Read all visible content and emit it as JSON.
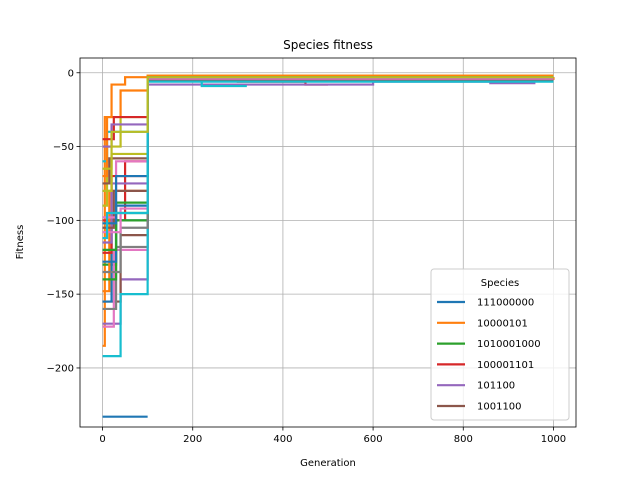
{
  "chart_data": {
    "type": "line",
    "title": "Species fitness",
    "xlabel": "Generation",
    "ylabel": "Fitness",
    "xlim": [
      -50,
      1050
    ],
    "ylim": [
      -240,
      10
    ],
    "xticks": [
      0,
      200,
      400,
      600,
      800,
      1000
    ],
    "yticks": [
      0,
      -50,
      -100,
      -150,
      -200
    ],
    "ytick_labels": [
      "0",
      "−50",
      "−100",
      "−150",
      "−200"
    ],
    "grid": true,
    "legend": {
      "title": "Species",
      "placement": "lower right"
    },
    "palette": [
      "#1f77b4",
      "#ff7f0e",
      "#2ca02c",
      "#d62728",
      "#9467bd",
      "#8c564b",
      "#e377c2",
      "#7f7f7f",
      "#bcbd22",
      "#17becf"
    ],
    "series": [
      {
        "name": "111000000",
        "color": "#1f77b4",
        "x": [
          0,
          100
        ],
        "y": [
          -233,
          -233
        ]
      },
      {
        "name": "10000101",
        "color": "#ff7f0e",
        "x": [
          0,
          5,
          20,
          50,
          100,
          1000
        ],
        "y": [
          -185,
          -30,
          -8,
          -3,
          -2,
          -2
        ]
      },
      {
        "name": "1010001000",
        "color": "#2ca02c",
        "x": [
          0,
          30,
          100,
          100,
          400,
          1000
        ],
        "y": [
          -130,
          -95,
          -70,
          -5,
          -4,
          -3
        ]
      },
      {
        "name": "100001101",
        "color": "#d62728",
        "x": [
          0,
          50,
          100,
          100,
          300,
          300,
          450,
          450,
          500
        ],
        "y": [
          -100,
          -60,
          -40,
          -5,
          -5,
          -6,
          -6,
          -8,
          -8
        ]
      },
      {
        "name": "101100",
        "color": "#9467bd",
        "x": [
          0,
          40,
          100,
          100,
          600,
          600,
          860,
          860,
          960
        ],
        "y": [
          -170,
          -140,
          -100,
          -8,
          -8,
          -6,
          -6,
          -7,
          -7
        ]
      },
      {
        "name": "1001100",
        "color": "#8c564b",
        "x": [
          0,
          40,
          100,
          100,
          650,
          650,
          700
        ],
        "y": [
          -155,
          -110,
          -85,
          -4,
          -4,
          -5,
          -5
        ]
      },
      {
        "name": "",
        "color": "#e377c2",
        "x": [
          0,
          25,
          100,
          100,
          1000
        ],
        "y": [
          -172,
          -120,
          -80,
          -3,
          -3
        ]
      },
      {
        "name": "",
        "color": "#7f7f7f",
        "x": [
          0,
          30,
          100,
          100,
          1000
        ],
        "y": [
          -160,
          -118,
          -90,
          -4,
          -4
        ]
      },
      {
        "name": "",
        "color": "#bcbd22",
        "x": [
          0,
          10,
          40,
          100,
          100,
          1000
        ],
        "y": [
          -90,
          -50,
          -30,
          -20,
          -2,
          -2
        ]
      },
      {
        "name": "",
        "color": "#17becf",
        "x": [
          0,
          40,
          100,
          100,
          220,
          220,
          320
        ],
        "y": [
          -192,
          -150,
          -112,
          -5,
          -5,
          -9,
          -9
        ]
      },
      {
        "name": "",
        "color": "#1f77b4",
        "x": [
          0,
          20,
          100,
          100,
          1000
        ],
        "y": [
          -155,
          -100,
          -70,
          -3,
          -3
        ]
      },
      {
        "name": "",
        "color": "#ff7f0e",
        "x": [
          0,
          15,
          100,
          100,
          1000
        ],
        "y": [
          -148,
          -80,
          -60,
          -2,
          -2
        ]
      },
      {
        "name": "",
        "color": "#2ca02c",
        "x": [
          0,
          30,
          100,
          100,
          800
        ],
        "y": [
          -140,
          -100,
          -65,
          -5,
          -5
        ]
      },
      {
        "name": "",
        "color": "#d62728",
        "x": [
          0,
          20,
          100,
          100,
          1000
        ],
        "y": [
          -122,
          -70,
          -50,
          -3,
          -3
        ]
      },
      {
        "name": "",
        "color": "#9467bd",
        "x": [
          0,
          20,
          100,
          100,
          1000
        ],
        "y": [
          -115,
          -75,
          -55,
          -4,
          -4
        ]
      },
      {
        "name": "",
        "color": "#8c564b",
        "x": [
          0,
          25,
          100,
          100,
          600
        ],
        "y": [
          -105,
          -80,
          -60,
          -4,
          -4
        ]
      },
      {
        "name": "",
        "color": "#e377c2",
        "x": [
          0,
          30,
          100,
          100,
          1000
        ],
        "y": [
          -98,
          -60,
          -45,
          -3,
          -3
        ]
      },
      {
        "name": "",
        "color": "#7f7f7f",
        "x": [
          0,
          40,
          100,
          100,
          1000
        ],
        "y": [
          -135,
          -105,
          -85,
          -4,
          -4
        ]
      },
      {
        "name": "",
        "color": "#bcbd22",
        "x": [
          0,
          20,
          100,
          100,
          1000
        ],
        "y": [
          -80,
          -55,
          -35,
          -3,
          -3
        ]
      },
      {
        "name": "",
        "color": "#17becf",
        "x": [
          0,
          10,
          100,
          100,
          1000
        ],
        "y": [
          -60,
          -40,
          -25,
          -4,
          -4
        ]
      },
      {
        "name": "",
        "color": "#1f77b4",
        "x": [
          0,
          30,
          100,
          100,
          1000
        ],
        "y": [
          -128,
          -90,
          -65,
          -3,
          -3
        ]
      },
      {
        "name": "",
        "color": "#ff7f0e",
        "x": [
          0,
          10,
          40,
          100,
          1000
        ],
        "y": [
          -70,
          -30,
          -12,
          -4,
          -3
        ]
      },
      {
        "name": "",
        "color": "#2ca02c",
        "x": [
          0,
          30,
          100,
          100,
          1000
        ],
        "y": [
          -120,
          -88,
          -72,
          -4,
          -4
        ]
      },
      {
        "name": "",
        "color": "#d62728",
        "x": [
          0,
          25,
          100,
          100,
          1000
        ],
        "y": [
          -45,
          -30,
          -20,
          -3,
          -3
        ]
      },
      {
        "name": "",
        "color": "#9467bd",
        "x": [
          0,
          20,
          100,
          100,
          1000
        ],
        "y": [
          -50,
          -35,
          -25,
          -4,
          -4
        ]
      },
      {
        "name": "",
        "color": "#8c564b",
        "x": [
          0,
          15,
          100,
          100,
          1000
        ],
        "y": [
          -75,
          -58,
          -42,
          -5,
          -5
        ]
      },
      {
        "name": "",
        "color": "#e377c2",
        "x": [
          0,
          40,
          100,
          100,
          1000
        ],
        "y": [
          -108,
          -92,
          -78,
          -4,
          -4
        ]
      },
      {
        "name": "",
        "color": "#1f77b4",
        "x": [
          0,
          30,
          100,
          100,
          1000
        ],
        "y": [
          -102,
          -70,
          -52,
          -3,
          -3
        ]
      },
      {
        "name": "",
        "color": "#17becf",
        "x": [
          0,
          10,
          100,
          100,
          1000
        ],
        "y": [
          -112,
          -95,
          -90,
          -6,
          -6
        ]
      },
      {
        "name": "",
        "color": "#bcbd22",
        "x": [
          0,
          20,
          100,
          100,
          1000
        ],
        "y": [
          -65,
          -40,
          -22,
          -3,
          -3
        ]
      }
    ]
  }
}
